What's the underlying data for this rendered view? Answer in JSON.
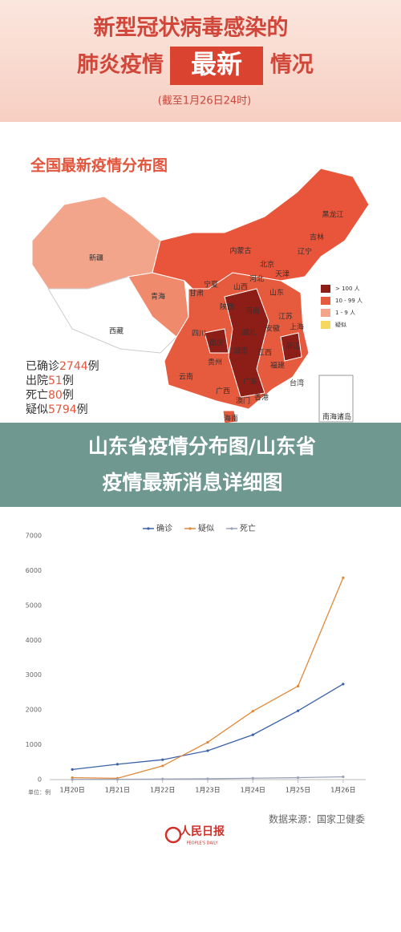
{
  "header": {
    "line1": "新型冠状病毒感染的",
    "line2_left": "肺炎疫情",
    "line2_highlight": "最新",
    "line2_right": "情况",
    "date": "(截至1月26日24时)"
  },
  "map": {
    "title": "全国最新疫情分布图",
    "provinces": [
      "新疆",
      "西藏",
      "青海",
      "甘肃",
      "宁夏",
      "内蒙古",
      "黑龙江",
      "吉林",
      "辽宁",
      "北京",
      "天津",
      "河北",
      "山西",
      "山东",
      "陕西",
      "河南",
      "江苏",
      "安徽",
      "湖北",
      "四川",
      "重庆",
      "上海",
      "浙江",
      "湖南",
      "江西",
      "贵州",
      "云南",
      "广西",
      "广东",
      "福建",
      "台湾",
      "香港",
      "澳门",
      "海南",
      "南海诸岛"
    ],
    "legend": [
      "> 100 人",
      "10 - 99 人",
      "1 - 9 人",
      "疑似"
    ],
    "stats": [
      {
        "label": "已确诊",
        "value": 2744,
        "unit": "例"
      },
      {
        "label": "出院",
        "value": 51,
        "unit": "例"
      },
      {
        "label": "死亡",
        "value": 80,
        "unit": "例"
      },
      {
        "label": "疑似",
        "value": 5794,
        "unit": "例"
      }
    ]
  },
  "overlay": {
    "headline_line1": "山东省疫情分布图/山东省",
    "headline_line2": "疫情最新消息详细图"
  },
  "chart_data": {
    "type": "line",
    "categories": [
      "1月20日",
      "1月21日",
      "1月22日",
      "1月23日",
      "1月24日",
      "1月25日",
      "1月26日"
    ],
    "series": [
      {
        "name": "确诊",
        "color": "#3a62a8",
        "values": [
          291,
          440,
          571,
          830,
          1287,
          1975,
          2744
        ]
      },
      {
        "name": "疑似",
        "color": "#e0883a",
        "values": [
          54,
          37,
          393,
          1072,
          1965,
          2684,
          5794
        ]
      },
      {
        "name": "死亡",
        "color": "#9aa3b8",
        "values": [
          6,
          9,
          17,
          25,
          41,
          56,
          80
        ]
      }
    ],
    "ylim": [
      0,
      7000
    ],
    "yticks": [
      0,
      1000,
      2000,
      3000,
      4000,
      5000,
      6000,
      7000
    ],
    "grid": false,
    "legend_position": "top",
    "unit_note": "单位：例"
  },
  "footer": {
    "source": "数据来源：国家卫健委",
    "logo": "人民日报",
    "logo_sub": "PEOPLE'S DAILY"
  }
}
